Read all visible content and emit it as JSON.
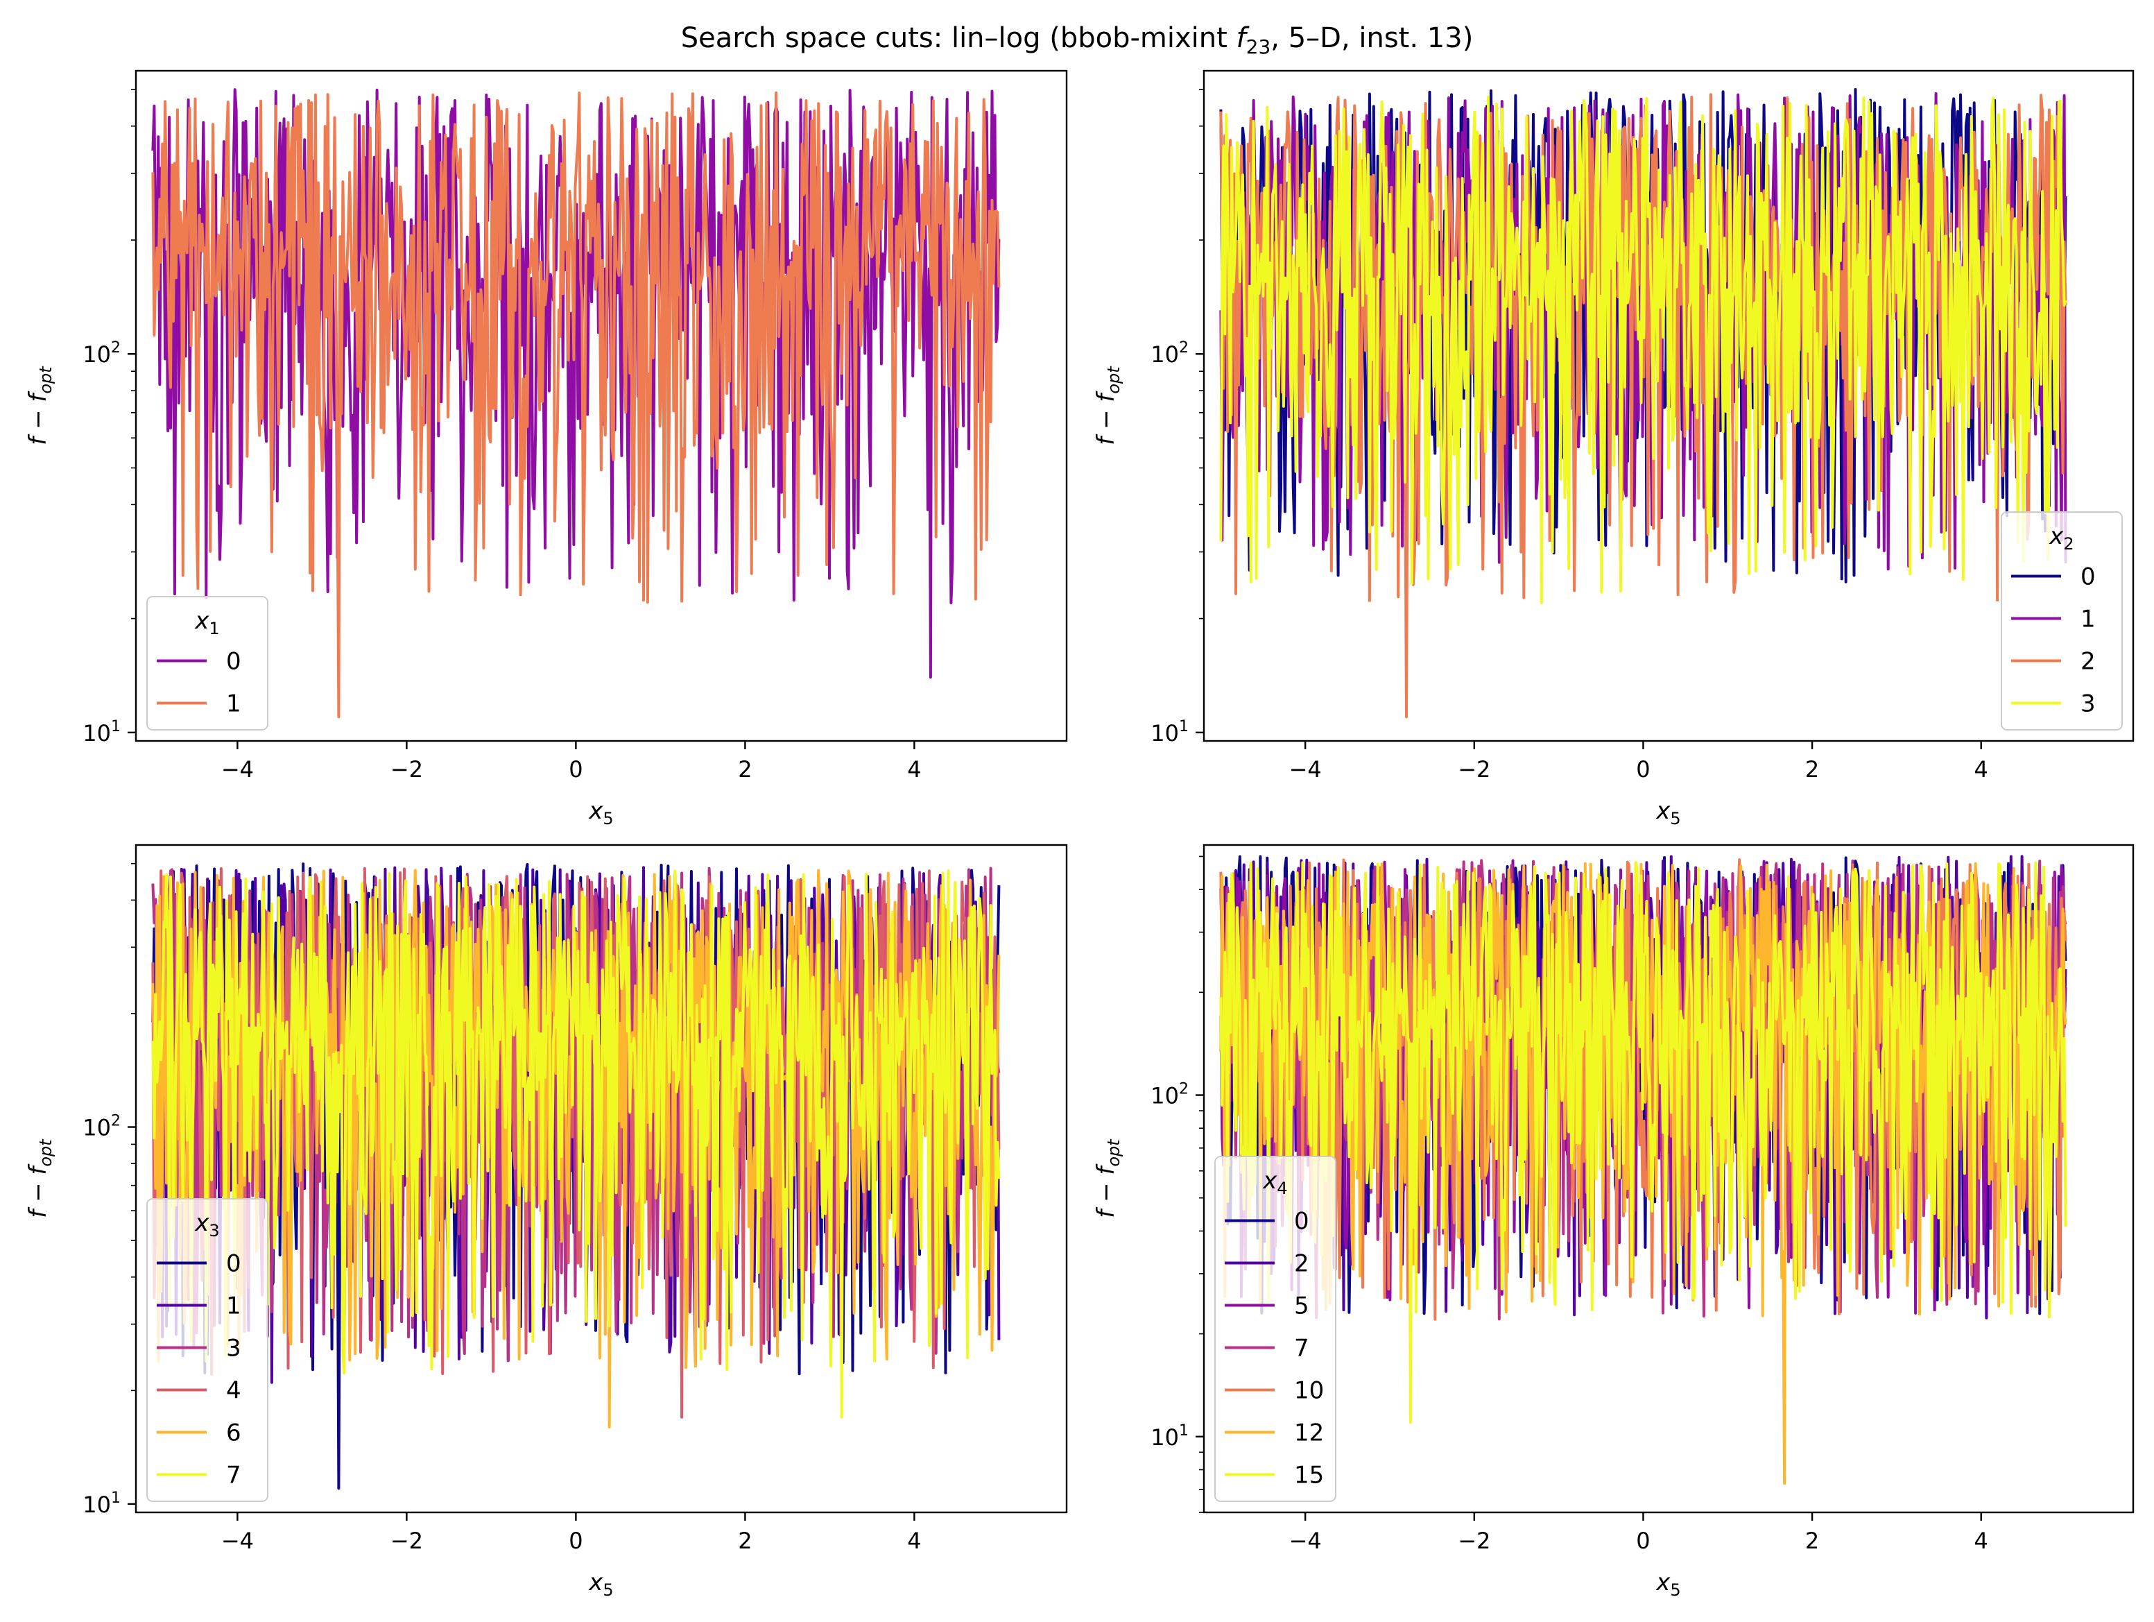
{
  "figure": {
    "title": "Search space cuts: lin–log (bbob-mixint f23, 5–D, inst. 13)",
    "title_parts": {
      "pre": "Search space cuts: lin–log (bbob-mixint ",
      "f": "f",
      "sub": "23",
      "post": ", 5–D, inst. 13)"
    }
  },
  "chart_data": [
    {
      "type": "line",
      "panel": "top-left",
      "xlabel": "x5",
      "ylabel": "f − f_opt",
      "xlim": [
        -5.2,
        5.8
      ],
      "ylim": [
        9.5,
        560
      ],
      "yscale": "log",
      "xticks": [
        -4,
        -2,
        0,
        2,
        4
      ],
      "xtick_labels": [
        "−4",
        "−2",
        "0",
        "2",
        "4"
      ],
      "yticks": [
        10,
        100
      ],
      "ytick_labels": [
        "10^1",
        "10^2"
      ],
      "legend": {
        "title": "x1",
        "placement": "lower left",
        "entries": [
          "0",
          "1"
        ]
      },
      "x_range": [
        -5,
        5
      ],
      "series": [
        {
          "name": "0",
          "color": "#8f0da4",
          "seed": 11,
          "min": 14,
          "max": 500,
          "dips": [
            [
              -4.2,
              38
            ],
            [
              -0.5,
              39
            ],
            [
              2.4,
              30
            ],
            [
              4.2,
              14
            ]
          ]
        },
        {
          "name": "1",
          "color": "#ef7b51",
          "seed": 23,
          "min": 11,
          "max": 490,
          "dips": [
            [
              -2.8,
              11
            ],
            [
              0.75,
              25
            ],
            [
              -1.9,
              27
            ],
            [
              -3.6,
              30
            ]
          ]
        }
      ]
    },
    {
      "type": "line",
      "panel": "top-right",
      "xlabel": "x5",
      "ylabel": "f − f_opt",
      "xlim": [
        -5.2,
        5.8
      ],
      "ylim": [
        9.5,
        560
      ],
      "yscale": "log",
      "xticks": [
        -4,
        -2,
        0,
        2,
        4
      ],
      "xtick_labels": [
        "−4",
        "−2",
        "0",
        "2",
        "4"
      ],
      "yticks": [
        10,
        100
      ],
      "ytick_labels": [
        "10^1",
        "10^2"
      ],
      "legend": {
        "title": "x2",
        "placement": "lower right",
        "entries": [
          "0",
          "1",
          "2",
          "3"
        ]
      },
      "x_range": [
        -5,
        5
      ],
      "series": [
        {
          "name": "0",
          "color": "#0d0887",
          "seed": 31,
          "min": 25,
          "max": 500,
          "dips": [
            [
              2.4,
              25
            ],
            [
              2.5,
              26
            ],
            [
              -4.3,
              34
            ]
          ]
        },
        {
          "name": "1",
          "color": "#8f0da4",
          "seed": 41,
          "min": 27,
          "max": 490,
          "dips": [
            [
              5.0,
              28
            ],
            [
              -3.6,
              36
            ]
          ]
        },
        {
          "name": "2",
          "color": "#ef7b51",
          "seed": 53,
          "min": 11,
          "max": 490,
          "dips": [
            [
              -2.8,
              11
            ],
            [
              0.75,
              25
            ],
            [
              -1.9,
              27
            ]
          ]
        },
        {
          "name": "3",
          "color": "#f0f921",
          "seed": 61,
          "min": 22,
          "max": 480,
          "dips": [
            [
              -1.2,
              22
            ],
            [
              -5.0,
              32
            ],
            [
              3.4,
              31
            ]
          ]
        }
      ]
    },
    {
      "type": "line",
      "panel": "bottom-left",
      "xlabel": "x5",
      "ylabel": "f − f_opt",
      "xlim": [
        -5.2,
        5.8
      ],
      "ylim": [
        9.5,
        560
      ],
      "yscale": "log",
      "xticks": [
        -4,
        -2,
        0,
        2,
        4
      ],
      "xtick_labels": [
        "−4",
        "−2",
        "0",
        "2",
        "4"
      ],
      "yticks": [
        10,
        100
      ],
      "ytick_labels": [
        "10^1",
        "10^2"
      ],
      "legend": {
        "title": "x3",
        "placement": "lower left",
        "entries": [
          "0",
          "1",
          "3",
          "4",
          "6",
          "7"
        ]
      },
      "x_range": [
        -5,
        5
      ],
      "series": [
        {
          "name": "0",
          "color": "#0d0887",
          "seed": 71,
          "min": 11,
          "max": 500,
          "dips": [
            [
              -2.8,
              11
            ],
            [
              -0.8,
              24
            ]
          ]
        },
        {
          "name": "1",
          "color": "#5302a3",
          "seed": 83,
          "min": 21,
          "max": 490,
          "dips": [
            [
              -3.6,
              21
            ],
            [
              -1.9,
              26
            ]
          ]
        },
        {
          "name": "3",
          "color": "#b83289",
          "seed": 97,
          "min": 25,
          "max": 490,
          "dips": [
            [
              -0.8,
              24
            ],
            [
              0.4,
              27
            ]
          ]
        },
        {
          "name": "4",
          "color": "#db5c68",
          "seed": 101,
          "min": 17,
          "max": 490,
          "dips": [
            [
              1.25,
              17
            ],
            [
              4.0,
              27
            ]
          ]
        },
        {
          "name": "6",
          "color": "#feb72d",
          "seed": 113,
          "min": 16,
          "max": 480,
          "dips": [
            [
              0.4,
              16
            ],
            [
              1.3,
              23
            ]
          ]
        },
        {
          "name": "7",
          "color": "#f0f921",
          "seed": 127,
          "min": 17,
          "max": 480,
          "dips": [
            [
              3.15,
              17
            ]
          ]
        }
      ]
    },
    {
      "type": "line",
      "panel": "bottom-right",
      "xlabel": "x5",
      "ylabel": "f − f_opt",
      "xlim": [
        -5.2,
        5.8
      ],
      "ylim": [
        6.0,
        540
      ],
      "yscale": "log",
      "xticks": [
        -4,
        -2,
        0,
        2,
        4
      ],
      "xtick_labels": [
        "−4",
        "−2",
        "0",
        "2",
        "4"
      ],
      "yticks": [
        10,
        100
      ],
      "ytick_labels": [
        "10^1",
        "10^2"
      ],
      "legend": {
        "title": "x4",
        "placement": "lower left",
        "entries": [
          "0",
          "2",
          "5",
          "7",
          "10",
          "12",
          "15"
        ]
      },
      "x_range": [
        -5,
        5
      ],
      "series": [
        {
          "name": "0",
          "color": "#0d0887",
          "seed": 131,
          "min": 20,
          "max": 500,
          "dips": []
        },
        {
          "name": "2",
          "color": "#5302a3",
          "seed": 137,
          "min": 20,
          "max": 500,
          "dips": []
        },
        {
          "name": "5",
          "color": "#8f0da4",
          "seed": 149,
          "min": 20,
          "max": 490,
          "dips": []
        },
        {
          "name": "7",
          "color": "#b83289",
          "seed": 151,
          "min": 18,
          "max": 490,
          "dips": []
        },
        {
          "name": "10",
          "color": "#ef7b51",
          "seed": 163,
          "min": 18,
          "max": 490,
          "dips": []
        },
        {
          "name": "12",
          "color": "#feb72d",
          "seed": 173,
          "min": 7,
          "max": 480,
          "dips": [
            [
              1.68,
              7.3
            ]
          ]
        },
        {
          "name": "15",
          "color": "#f0f921",
          "seed": 181,
          "min": 11,
          "max": 480,
          "dips": [
            [
              -2.75,
              11
            ]
          ]
        }
      ]
    }
  ]
}
